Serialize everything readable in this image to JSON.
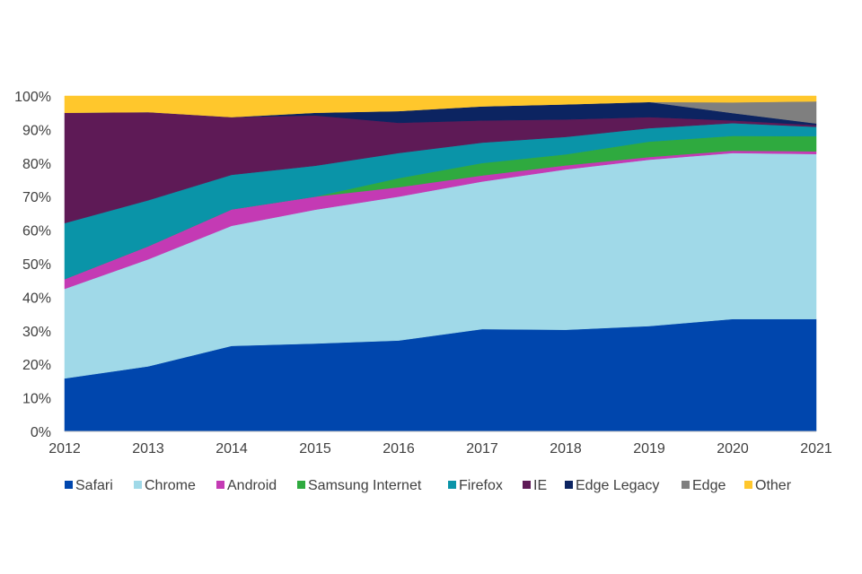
{
  "chart_data": {
    "type": "area",
    "stacked": true,
    "title": "",
    "xlabel": "",
    "ylabel": "",
    "x": [
      "2012",
      "2013",
      "2014",
      "2015",
      "2016",
      "2017",
      "2018",
      "2019",
      "2020",
      "2021"
    ],
    "ylim": [
      0,
      100
    ],
    "yticks": [
      "0%",
      "10%",
      "20%",
      "30%",
      "40%",
      "50%",
      "60%",
      "70%",
      "80%",
      "90%",
      "100%"
    ],
    "grid": false,
    "legend_position": "bottom",
    "series": [
      {
        "name": "Safari",
        "color": "#0046AD",
        "values": [
          15.8,
          19.4,
          25.5,
          26.2,
          27.1,
          30.5,
          30.3,
          31.4,
          33.5,
          33.5
        ]
      },
      {
        "name": "Chrome",
        "color": "#A0D9E8",
        "values": [
          26.7,
          31.9,
          35.8,
          39.9,
          42.9,
          44.0,
          47.8,
          49.6,
          49.5,
          49.2
        ]
      },
      {
        "name": "Android",
        "color": "#C43AB4",
        "values": [
          2.9,
          3.9,
          4.9,
          3.9,
          2.8,
          1.8,
          1.2,
          0.8,
          0.7,
          0.8
        ]
      },
      {
        "name": "Samsung Internet",
        "color": "#2FAA3F",
        "values": [
          0.0,
          0.0,
          0.0,
          0.0,
          2.7,
          3.7,
          3.3,
          4.6,
          4.4,
          4.5
        ]
      },
      {
        "name": "Firefox",
        "color": "#0A94A8",
        "values": [
          16.7,
          13.7,
          10.3,
          9.2,
          7.5,
          6.1,
          5.2,
          4.0,
          3.8,
          2.8
        ]
      },
      {
        "name": "IE",
        "color": "#5E1A56",
        "values": [
          32.9,
          26.3,
          17.2,
          15.0,
          9.0,
          6.6,
          5.2,
          3.3,
          0.8,
          0.5
        ]
      },
      {
        "name": "Edge Legacy",
        "color": "#0C2461",
        "values": [
          0.0,
          0.0,
          0.0,
          0.8,
          3.5,
          4.2,
          4.5,
          4.5,
          2.2,
          0.5
        ]
      },
      {
        "name": "Edge",
        "color": "#7F7F7F",
        "values": [
          0.0,
          0.0,
          0.0,
          0.0,
          0.0,
          0.0,
          0.0,
          0.0,
          3.2,
          6.6
        ]
      },
      {
        "name": "Other",
        "color": "#FFC72C",
        "values": [
          5.0,
          4.8,
          6.3,
          5.0,
          4.5,
          3.1,
          2.5,
          1.8,
          1.9,
          1.6
        ]
      }
    ]
  }
}
